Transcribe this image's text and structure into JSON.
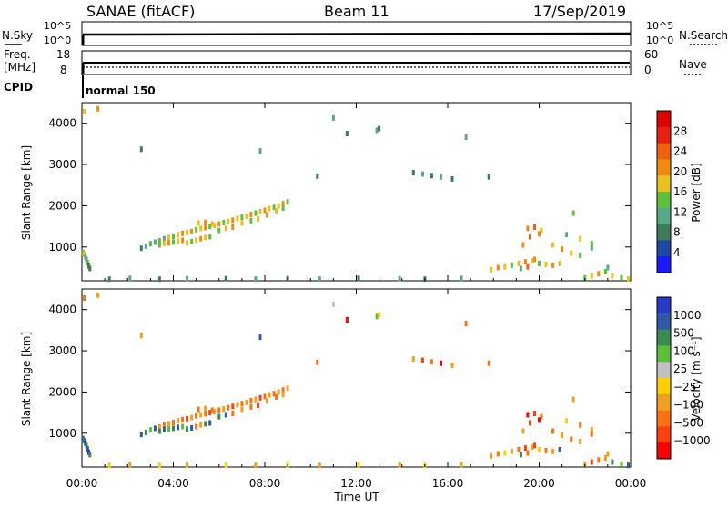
{
  "header": {
    "title": "SANAE (fitACF)",
    "beam": "Beam 11",
    "date": "17/Sep/2019"
  },
  "top_panels": {
    "nsky_label": "N.Sky",
    "nsearch_label": "N.Search",
    "freq_label_1": "Freq.",
    "freq_label_2": "[MHz]",
    "nave_label": "Nave",
    "cpid_label": "CPID",
    "cpid_value": "normal 150",
    "left_ticks_noise": [
      "10^5",
      "10^0"
    ],
    "right_ticks_noise": [
      "10^5",
      "10^0"
    ],
    "left_ticks_freq": [
      "18",
      "8"
    ],
    "right_ticks_freq": [
      "60",
      "0"
    ]
  },
  "colors": {
    "power": [
      "#1a1aff",
      "#1e48a8",
      "#3c7a58",
      "#5aa88a",
      "#5ec03a",
      "#e8c020",
      "#f08a10",
      "#f06010",
      "#e82010",
      "#e00000"
    ],
    "velocity": [
      "#2838c8",
      "#2f58a8",
      "#3a8a50",
      "#5ac03a",
      "#c0c0c0",
      "#ffd000",
      "#f0a020",
      "#ff7010",
      "#ff4010",
      "#ff0000"
    ]
  },
  "chart_data": [
    {
      "type": "scatter",
      "name": "power",
      "xlabel": "",
      "ylabel": "Slant Range [km]",
      "xlim": [
        0,
        24
      ],
      "ylim": [
        180,
        4500
      ],
      "y_ticks": [
        1000,
        2000,
        3000,
        4000
      ],
      "x_ticks": [
        "00:00",
        "04:00",
        "08:00",
        "12:00",
        "16:00",
        "20:00",
        "00:00"
      ],
      "colorbar_label": "Power [dB]",
      "colorbar_ticks": [
        "4",
        "8",
        "12",
        "16",
        "20",
        "24",
        "28"
      ],
      "points": [
        [
          0.05,
          870,
          4
        ],
        [
          0.1,
          820,
          5
        ],
        [
          0.15,
          760,
          3
        ],
        [
          0.2,
          700,
          3
        ],
        [
          0.25,
          620,
          4
        ],
        [
          0.3,
          540,
          2
        ],
        [
          0.35,
          480,
          2
        ],
        [
          0.1,
          4280,
          5
        ],
        [
          0.7,
          4350,
          6
        ],
        [
          2.6,
          3370,
          2
        ],
        [
          7.8,
          3330,
          3
        ],
        [
          2.6,
          970,
          2
        ],
        [
          2.8,
          1020,
          3
        ],
        [
          3.0,
          1080,
          4
        ],
        [
          3.2,
          1120,
          3
        ],
        [
          3.4,
          1150,
          4
        ],
        [
          3.6,
          1200,
          3
        ],
        [
          3.8,
          1230,
          5
        ],
        [
          4.0,
          1260,
          4
        ],
        [
          4.2,
          1300,
          5
        ],
        [
          4.4,
          1330,
          6
        ],
        [
          4.6,
          1350,
          5
        ],
        [
          4.8,
          1380,
          6
        ],
        [
          5.0,
          1420,
          4
        ],
        [
          5.2,
          1450,
          5
        ],
        [
          5.4,
          1470,
          6
        ],
        [
          5.6,
          1500,
          4
        ],
        [
          5.8,
          1520,
          5
        ],
        [
          6.0,
          1560,
          6
        ],
        [
          6.2,
          1590,
          4
        ],
        [
          6.4,
          1620,
          5
        ],
        [
          6.6,
          1650,
          6
        ],
        [
          6.8,
          1690,
          5
        ],
        [
          7.0,
          1720,
          4
        ],
        [
          7.2,
          1750,
          5
        ],
        [
          7.4,
          1790,
          6
        ],
        [
          7.6,
          1820,
          4
        ],
        [
          7.8,
          1860,
          5
        ],
        [
          8.0,
          1890,
          6
        ],
        [
          8.2,
          1930,
          5
        ],
        [
          8.4,
          1960,
          4
        ],
        [
          8.6,
          2000,
          5
        ],
        [
          8.8,
          2050,
          6
        ],
        [
          9.0,
          2090,
          4
        ],
        [
          3.4,
          1050,
          4
        ],
        [
          3.6,
          1090,
          5
        ],
        [
          3.8,
          1100,
          6
        ],
        [
          4.0,
          1120,
          4
        ],
        [
          4.2,
          1140,
          5
        ],
        [
          4.4,
          1160,
          6
        ],
        [
          4.6,
          1100,
          5
        ],
        [
          4.8,
          1130,
          4
        ],
        [
          5.0,
          1160,
          5
        ],
        [
          5.2,
          1200,
          6
        ],
        [
          5.4,
          1230,
          5
        ],
        [
          5.6,
          1250,
          4
        ],
        [
          5.1,
          1580,
          5
        ],
        [
          5.4,
          1600,
          6
        ],
        [
          5.7,
          1560,
          5
        ],
        [
          6.0,
          1400,
          4
        ],
        [
          6.3,
          1450,
          5
        ],
        [
          6.6,
          1480,
          6
        ],
        [
          7.0,
          1580,
          5
        ],
        [
          7.4,
          1640,
          4
        ],
        [
          7.7,
          1680,
          5
        ],
        [
          8.1,
          1780,
          6
        ],
        [
          8.5,
          1880,
          5
        ],
        [
          8.8,
          1940,
          4
        ],
        [
          10.3,
          2720,
          2
        ],
        [
          11.0,
          4130,
          3
        ],
        [
          11.6,
          3750,
          2
        ],
        [
          12.9,
          3830,
          3
        ],
        [
          13.0,
          3870,
          2
        ],
        [
          14.5,
          2800,
          2
        ],
        [
          14.9,
          2770,
          3
        ],
        [
          15.3,
          2730,
          2
        ],
        [
          15.7,
          2700,
          3
        ],
        [
          16.2,
          2650,
          2
        ],
        [
          16.8,
          3660,
          3
        ],
        [
          17.8,
          2700,
          2
        ],
        [
          17.9,
          450,
          5
        ],
        [
          18.2,
          500,
          6
        ],
        [
          18.5,
          520,
          5
        ],
        [
          18.8,
          560,
          4
        ],
        [
          19.1,
          600,
          5
        ],
        [
          19.4,
          640,
          6
        ],
        [
          19.7,
          660,
          5
        ],
        [
          20.0,
          600,
          4
        ],
        [
          20.3,
          580,
          5
        ],
        [
          20.6,
          560,
          6
        ],
        [
          20.9,
          600,
          5
        ],
        [
          19.2,
          480,
          3
        ],
        [
          19.5,
          520,
          7
        ],
        [
          19.8,
          700,
          6
        ],
        [
          19.5,
          1450,
          6
        ],
        [
          19.8,
          1480,
          7
        ],
        [
          20.1,
          1400,
          5
        ],
        [
          19.6,
          1250,
          7
        ],
        [
          20.0,
          1320,
          6
        ],
        [
          19.3,
          1050,
          6
        ],
        [
          20.6,
          1050,
          5
        ],
        [
          21.0,
          950,
          6
        ],
        [
          21.4,
          850,
          5
        ],
        [
          21.8,
          800,
          4
        ],
        [
          21.2,
          1300,
          3
        ],
        [
          21.8,
          1200,
          5
        ],
        [
          22.3,
          1080,
          4
        ],
        [
          22.0,
          250,
          4
        ],
        [
          22.3,
          300,
          5
        ],
        [
          22.6,
          350,
          6
        ],
        [
          22.9,
          400,
          4
        ],
        [
          23.2,
          300,
          5
        ],
        [
          23.6,
          250,
          4
        ],
        [
          23.9,
          220,
          5
        ],
        [
          21.5,
          1820,
          4
        ],
        [
          22.3,
          980,
          3
        ],
        [
          23.0,
          500,
          3
        ],
        [
          1.2,
          220,
          2
        ],
        [
          2.1,
          240,
          3
        ],
        [
          3.4,
          220,
          2
        ],
        [
          4.6,
          230,
          3
        ],
        [
          6.3,
          230,
          2
        ],
        [
          7.6,
          220,
          3
        ],
        [
          9.0,
          230,
          2
        ],
        [
          10.4,
          220,
          3
        ],
        [
          12.1,
          240,
          2
        ],
        [
          13.9,
          230,
          3
        ],
        [
          15.0,
          220,
          2
        ],
        [
          16.6,
          240,
          3
        ]
      ]
    },
    {
      "type": "scatter",
      "name": "velocity",
      "xlabel": "Time UT",
      "ylabel": "Slant Range [km]",
      "xlim": [
        0,
        24
      ],
      "ylim": [
        180,
        4500
      ],
      "y_ticks": [
        1000,
        2000,
        3000,
        4000
      ],
      "x_ticks": [
        "00:00",
        "04:00",
        "08:00",
        "12:00",
        "16:00",
        "20:00",
        "00:00"
      ],
      "colorbar_label": "Velocity [m s⁻¹]",
      "colorbar_ticks": [
        "1000",
        "500",
        "100",
        "25",
        "−25",
        "−100",
        "−500",
        "−1000"
      ],
      "points": [
        [
          0.05,
          870,
          1
        ],
        [
          0.1,
          820,
          2
        ],
        [
          0.15,
          760,
          0
        ],
        [
          0.2,
          700,
          2
        ],
        [
          0.25,
          620,
          1
        ],
        [
          0.3,
          540,
          0
        ],
        [
          0.35,
          480,
          2
        ],
        [
          0.1,
          4280,
          7
        ],
        [
          0.7,
          4350,
          6
        ],
        [
          2.6,
          3370,
          6
        ],
        [
          7.8,
          3330,
          1
        ],
        [
          2.6,
          970,
          1
        ],
        [
          2.8,
          1020,
          2
        ],
        [
          3.0,
          1080,
          3
        ],
        [
          3.2,
          1120,
          1
        ],
        [
          3.4,
          1150,
          6
        ],
        [
          3.6,
          1200,
          7
        ],
        [
          3.8,
          1230,
          6
        ],
        [
          4.0,
          1260,
          7
        ],
        [
          4.2,
          1300,
          6
        ],
        [
          4.4,
          1330,
          7
        ],
        [
          4.6,
          1350,
          8
        ],
        [
          4.8,
          1380,
          6
        ],
        [
          5.0,
          1420,
          7
        ],
        [
          5.2,
          1450,
          6
        ],
        [
          5.4,
          1470,
          7
        ],
        [
          5.6,
          1500,
          8
        ],
        [
          5.8,
          1520,
          6
        ],
        [
          6.0,
          1560,
          7
        ],
        [
          6.2,
          1590,
          6
        ],
        [
          6.4,
          1620,
          7
        ],
        [
          6.6,
          1650,
          8
        ],
        [
          6.8,
          1690,
          6
        ],
        [
          7.0,
          1720,
          7
        ],
        [
          7.2,
          1750,
          6
        ],
        [
          7.4,
          1790,
          7
        ],
        [
          7.6,
          1820,
          6
        ],
        [
          7.8,
          1860,
          8
        ],
        [
          8.0,
          1890,
          7
        ],
        [
          8.2,
          1930,
          6
        ],
        [
          8.4,
          1960,
          7
        ],
        [
          8.6,
          2000,
          6
        ],
        [
          8.8,
          2050,
          7
        ],
        [
          9.0,
          2090,
          6
        ],
        [
          3.4,
          1050,
          2
        ],
        [
          3.6,
          1090,
          1
        ],
        [
          3.8,
          1100,
          3
        ],
        [
          4.0,
          1120,
          2
        ],
        [
          4.2,
          1140,
          1
        ],
        [
          4.4,
          1160,
          3
        ],
        [
          4.6,
          1100,
          2
        ],
        [
          4.8,
          1130,
          1
        ],
        [
          5.0,
          1160,
          7
        ],
        [
          5.2,
          1200,
          6
        ],
        [
          5.4,
          1230,
          2
        ],
        [
          5.6,
          1250,
          1
        ],
        [
          5.1,
          1580,
          7
        ],
        [
          5.4,
          1600,
          6
        ],
        [
          5.7,
          1560,
          7
        ],
        [
          6.0,
          1400,
          2
        ],
        [
          6.3,
          1450,
          1
        ],
        [
          6.6,
          1480,
          7
        ],
        [
          7.0,
          1580,
          6
        ],
        [
          7.4,
          1640,
          7
        ],
        [
          7.7,
          1680,
          8
        ],
        [
          8.1,
          1780,
          6
        ],
        [
          8.5,
          1880,
          7
        ],
        [
          8.8,
          1940,
          6
        ],
        [
          10.3,
          2720,
          7
        ],
        [
          11.0,
          4130,
          4
        ],
        [
          11.6,
          3750,
          9
        ],
        [
          12.9,
          3830,
          3
        ],
        [
          13.0,
          3870,
          5
        ],
        [
          14.5,
          2800,
          6
        ],
        [
          14.9,
          2770,
          8
        ],
        [
          15.3,
          2730,
          7
        ],
        [
          15.7,
          2700,
          9
        ],
        [
          16.2,
          2650,
          6
        ],
        [
          16.8,
          3660,
          7
        ],
        [
          17.8,
          2700,
          7
        ],
        [
          17.9,
          450,
          6
        ],
        [
          18.2,
          500,
          7
        ],
        [
          18.5,
          520,
          5
        ],
        [
          18.8,
          560,
          6
        ],
        [
          19.1,
          600,
          7
        ],
        [
          19.4,
          640,
          8
        ],
        [
          19.7,
          660,
          6
        ],
        [
          20.0,
          600,
          5
        ],
        [
          20.3,
          580,
          7
        ],
        [
          20.6,
          560,
          6
        ],
        [
          20.9,
          600,
          1
        ],
        [
          19.2,
          480,
          2
        ],
        [
          19.5,
          520,
          7
        ],
        [
          19.8,
          700,
          8
        ],
        [
          19.5,
          1450,
          9
        ],
        [
          19.8,
          1480,
          8
        ],
        [
          20.1,
          1400,
          7
        ],
        [
          19.6,
          1250,
          8
        ],
        [
          20.0,
          1320,
          9
        ],
        [
          19.3,
          1050,
          6
        ],
        [
          20.6,
          1050,
          7
        ],
        [
          21.0,
          950,
          6
        ],
        [
          21.4,
          850,
          7
        ],
        [
          21.8,
          800,
          6
        ],
        [
          21.2,
          1300,
          5
        ],
        [
          21.8,
          1200,
          7
        ],
        [
          22.3,
          1080,
          6
        ],
        [
          22.0,
          250,
          6
        ],
        [
          22.3,
          300,
          8
        ],
        [
          22.6,
          350,
          7
        ],
        [
          22.9,
          400,
          6
        ],
        [
          23.2,
          300,
          2
        ],
        [
          23.6,
          250,
          3
        ],
        [
          23.9,
          220,
          1
        ],
        [
          21.5,
          1820,
          6
        ],
        [
          22.3,
          980,
          7
        ],
        [
          23.0,
          500,
          6
        ],
        [
          1.2,
          220,
          5
        ],
        [
          2.1,
          240,
          6
        ],
        [
          3.4,
          220,
          5
        ],
        [
          4.6,
          230,
          6
        ],
        [
          6.3,
          230,
          5
        ],
        [
          7.6,
          220,
          6
        ],
        [
          9.0,
          230,
          5
        ],
        [
          10.4,
          220,
          6
        ],
        [
          12.1,
          240,
          5
        ],
        [
          13.9,
          230,
          6
        ],
        [
          15.0,
          220,
          5
        ],
        [
          16.6,
          240,
          6
        ]
      ]
    }
  ]
}
